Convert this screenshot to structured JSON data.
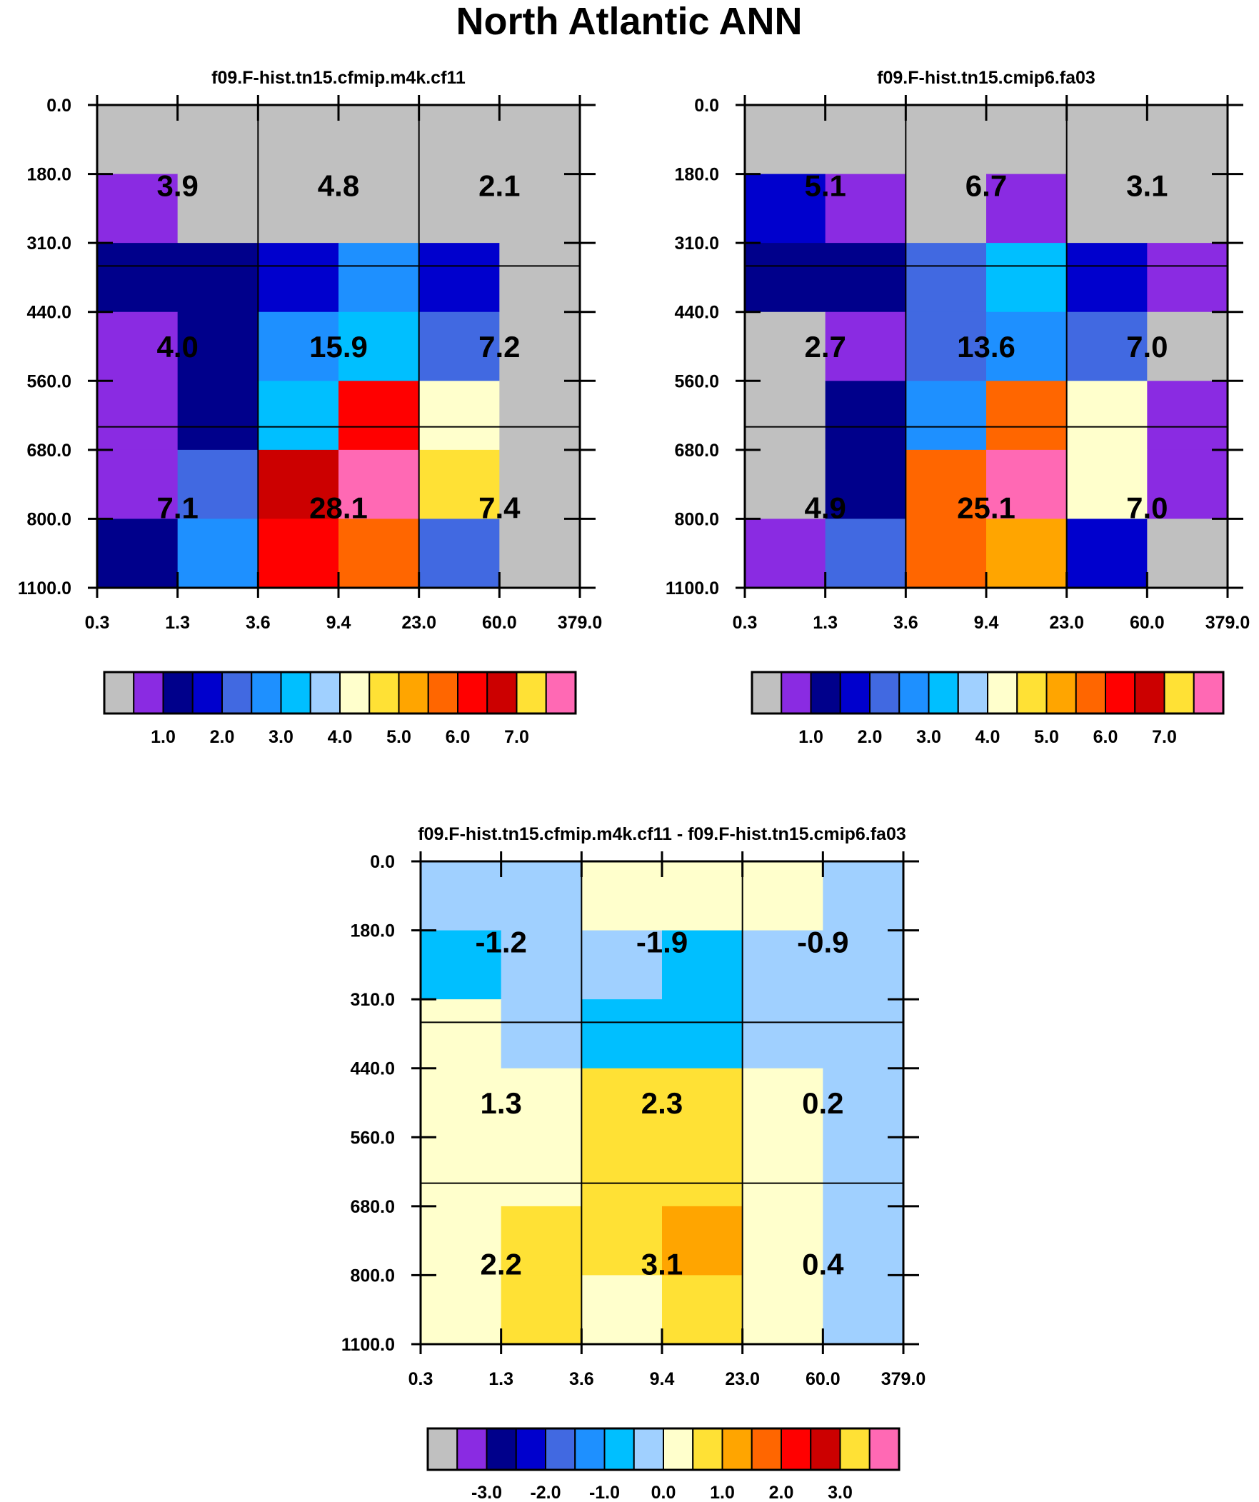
{
  "title": "North Atlantic ANN",
  "palette": {
    "base": [
      "#c0c0c0",
      "#8a2be2",
      "#00008b",
      "#0000cd",
      "#4169e1",
      "#1e90ff",
      "#00bfff",
      "#a0d0ff",
      "#ffffcc",
      "#ffe135",
      "#ffa500",
      "#ff6600",
      "#ff0000",
      "#cc0000",
      "#9b2226",
      "#ff69b4"
    ]
  },
  "chart_data": [
    {
      "type": "heatmap",
      "title": "f09.F-hist.tn15.cfmip.m4k.cf11",
      "x_ticks": [
        "0.3",
        "1.3",
        "3.6",
        "9.4",
        "23.0",
        "60.0",
        "379.0"
      ],
      "y_ticks": [
        "0.0",
        "180.0",
        "310.0",
        "440.0",
        "560.0",
        "680.0",
        "800.0",
        "1100.0"
      ],
      "grid": true,
      "cells": [
        [
          0,
          0,
          0,
          0,
          0,
          0
        ],
        [
          1,
          0,
          0,
          0,
          0,
          0
        ],
        [
          2,
          2,
          3,
          5,
          3,
          0
        ],
        [
          1,
          2,
          5,
          6,
          4,
          0
        ],
        [
          1,
          2,
          6,
          12,
          8,
          0
        ],
        [
          1,
          4,
          13,
          15,
          9,
          0
        ],
        [
          2,
          5,
          12,
          11,
          4,
          0
        ]
      ],
      "box_labels": [
        [
          "3.9",
          "4.8",
          "2.1"
        ],
        [
          "4.0",
          "15.9",
          "7.2"
        ],
        [
          "7.1",
          "28.1",
          "7.4"
        ]
      ],
      "colorbar_labels": [
        "1.0",
        "2.0",
        "3.0",
        "4.0",
        "5.0",
        "6.0",
        "7.0"
      ]
    },
    {
      "type": "heatmap",
      "title": "f09.F-hist.tn15.cmip6.fa03",
      "x_ticks": [
        "0.3",
        "1.3",
        "3.6",
        "9.4",
        "23.0",
        "60.0",
        "379.0"
      ],
      "y_ticks": [
        "0.0",
        "180.0",
        "310.0",
        "440.0",
        "560.0",
        "680.0",
        "800.0",
        "1100.0"
      ],
      "grid": true,
      "cells": [
        [
          0,
          0,
          0,
          0,
          0,
          0
        ],
        [
          3,
          1,
          0,
          1,
          0,
          0
        ],
        [
          2,
          2,
          4,
          6,
          3,
          1
        ],
        [
          0,
          1,
          4,
          5,
          4,
          0
        ],
        [
          0,
          2,
          5,
          11,
          8,
          1
        ],
        [
          0,
          2,
          11,
          15,
          8,
          1
        ],
        [
          1,
          4,
          11,
          10,
          3,
          0
        ]
      ],
      "box_labels": [
        [
          "5.1",
          "6.7",
          "3.1"
        ],
        [
          "2.7",
          "13.6",
          "7.0"
        ],
        [
          "4.9",
          "25.1",
          "7.0"
        ]
      ],
      "colorbar_labels": [
        "1.0",
        "2.0",
        "3.0",
        "4.0",
        "5.0",
        "6.0",
        "7.0"
      ]
    },
    {
      "type": "heatmap",
      "title": "f09.F-hist.tn15.cfmip.m4k.cf11 - f09.F-hist.tn15.cmip6.fa03",
      "x_ticks": [
        "0.3",
        "1.3",
        "3.6",
        "9.4",
        "23.0",
        "60.0",
        "379.0"
      ],
      "y_ticks": [
        "0.0",
        "180.0",
        "310.0",
        "440.0",
        "560.0",
        "680.0",
        "800.0",
        "1100.0"
      ],
      "grid": true,
      "cells": [
        [
          7,
          7,
          8,
          8,
          8,
          7
        ],
        [
          6,
          7,
          7,
          6,
          7,
          7
        ],
        [
          8,
          7,
          6,
          6,
          7,
          7
        ],
        [
          8,
          8,
          9,
          9,
          8,
          7
        ],
        [
          8,
          8,
          9,
          9,
          8,
          7
        ],
        [
          8,
          9,
          9,
          10,
          8,
          7
        ],
        [
          8,
          9,
          8,
          9,
          8,
          7
        ]
      ],
      "box_labels": [
        [
          "-1.2",
          "-1.9",
          "-0.9"
        ],
        [
          "1.3",
          "2.3",
          "0.2"
        ],
        [
          "2.2",
          "3.1",
          "0.4"
        ]
      ],
      "colorbar_labels": [
        "-3.0",
        "-2.0",
        "-1.0",
        "0.0",
        "1.0",
        "2.0",
        "3.0"
      ]
    }
  ]
}
